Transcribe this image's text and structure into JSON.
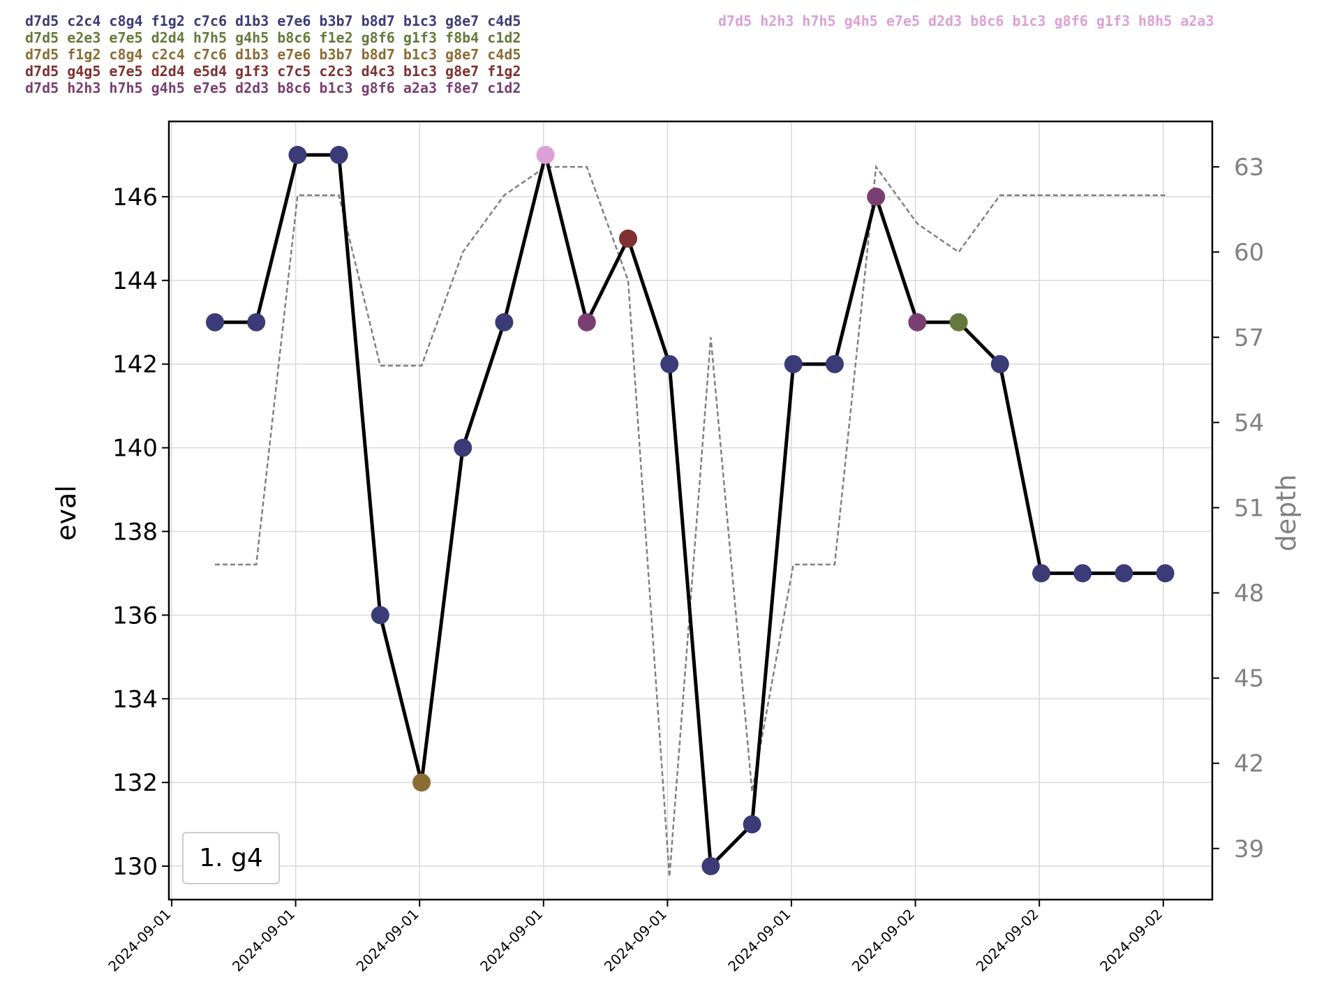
{
  "principal_variations": [
    {
      "text": "d7d5 c2c4 c8g4 f1g2 c7c6 d1b3 e7e6 b3b7 b8d7 b1c3 g8e7 c4d5",
      "color": "#3b3b78"
    },
    {
      "text": "d7d5 e2e3 e7e5 d2d4 h7h5 g4h5 b8c6 f1e2 g8f6 g1f3 f8b4 c1d2",
      "color": "#647a3c"
    },
    {
      "text": "d7d5 f1g2 c8g4 c2c4 c7c6 d1b3 e7e6 b3b7 b8d7 b1c3 g8e7 c4d5",
      "color": "#8a6d35"
    },
    {
      "text": "d7d5 g4g5 e7e5 d2d4 e5d4 g1f3 c7c5 c2c3 d4c3 b1c3 g8e7 f1g2",
      "color": "#7f3030"
    },
    {
      "text": "d7d5 h2h3 h7h5 g4h5 e7e5 d2d3 b8c6 b1c3 g8f6 a2a3 f8e7 c1d2",
      "color": "#7a3f70"
    },
    {
      "text": "d7d5 h2h3 h7h5 g4h5 e7e5 d2d3 b8c6 b1c3 g8f6 g1f3 h8h5 a2a3",
      "color": "#dca0d6"
    }
  ],
  "chart_data": {
    "type": "line",
    "ylabel": "eval",
    "y2label": "depth",
    "ylim": [
      129.2,
      147.8
    ],
    "y2lim": [
      37.2,
      64.6
    ],
    "yticks": [
      130,
      132,
      134,
      136,
      138,
      140,
      142,
      144,
      146
    ],
    "y2ticks": [
      39,
      42,
      45,
      48,
      51,
      54,
      57,
      60,
      63
    ],
    "xtick_labels": [
      "2024-09-01",
      "2024-09-01",
      "2024-09-01",
      "2024-09-01",
      "2024-09-01",
      "2024-09-01",
      "2024-09-02",
      "2024-09-02",
      "2024-09-02"
    ],
    "legend_text": "1. g4",
    "legend_position": "lower-left",
    "grid": true,
    "series": [
      {
        "values": [
          143,
          143,
          147,
          147,
          136,
          132,
          140,
          143,
          147,
          143,
          145,
          142,
          130,
          131,
          142,
          142,
          146,
          143,
          143,
          142,
          137,
          137,
          137,
          137
        ],
        "point_colors": [
          "#3b3b78",
          "#3b3b78",
          "#3b3b78",
          "#3b3b78",
          "#3b3b78",
          "#8a6d35",
          "#3b3b78",
          "#3b3b78",
          "#dca0d6",
          "#7a3f70",
          "#7f3030",
          "#3b3b78",
          "#3b3b78",
          "#3b3b78",
          "#3b3b78",
          "#3b3b78",
          "#7a3f70",
          "#7a3f70",
          "#647a3c",
          "#3b3b78",
          "#3b3b78",
          "#3b3b78",
          "#3b3b78",
          "#3b3b78"
        ],
        "line_color": "#000000"
      },
      {
        "values": [
          49,
          49,
          62,
          62,
          56,
          56,
          60,
          62,
          63,
          63,
          59,
          38,
          57,
          41,
          49,
          49,
          63,
          61,
          60,
          62,
          62,
          62,
          62,
          62
        ],
        "line_color": "#808080",
        "line_style": "dashed"
      }
    ]
  }
}
